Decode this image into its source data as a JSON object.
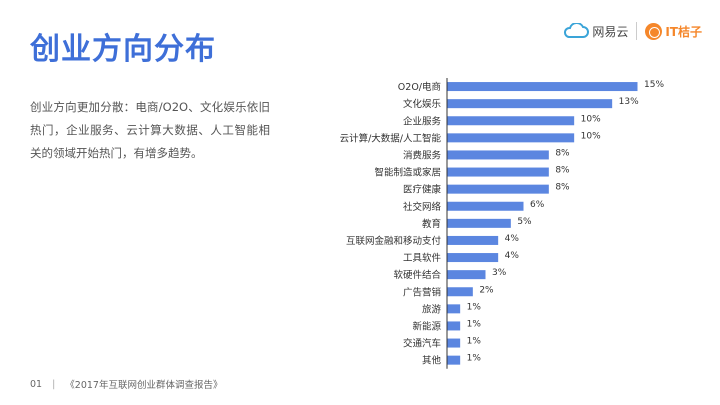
{
  "header": {
    "title": "创业方向分布",
    "logo_netease": "网易云",
    "logo_itjuzi": "IT桔子"
  },
  "description": "创业方向更加分散：电商/O2O、文化娱乐依旧热门，企业服务、云计算大数据、人工智能相关的领域开始热门，有增多趋势。",
  "footer": {
    "page": "01",
    "separator": "|",
    "source": "《2017年互联网创业群体调查报告》"
  },
  "colors": {
    "bar": "#5b86e0",
    "title": "#3e6fd8"
  },
  "chart_data": {
    "type": "bar",
    "orientation": "horizontal",
    "categories": [
      "O2O/电商",
      "文化娱乐",
      "企业服务",
      "云计算/大数据/人工智能",
      "消费服务",
      "智能制造或家居",
      "医疗健康",
      "社交网络",
      "教育",
      "互联网金融和移动支付",
      "工具软件",
      "软硬件结合",
      "广告营销",
      "旅游",
      "新能源",
      "交通汽车",
      "其他"
    ],
    "values": [
      15,
      13,
      10,
      10,
      8,
      8,
      8,
      6,
      5,
      4,
      4,
      3,
      2,
      1,
      1,
      1,
      1
    ],
    "value_labels": [
      "15%",
      "13%",
      "10%",
      "10%",
      "8%",
      "8%",
      "8%",
      "6%",
      "5%",
      "4%",
      "4%",
      "3%",
      "2%",
      "1%",
      "1%",
      "1%",
      "1%"
    ],
    "unit": "%",
    "xlim": [
      0,
      15
    ],
    "grid": false,
    "title": "",
    "xlabel": "",
    "ylabel": ""
  }
}
